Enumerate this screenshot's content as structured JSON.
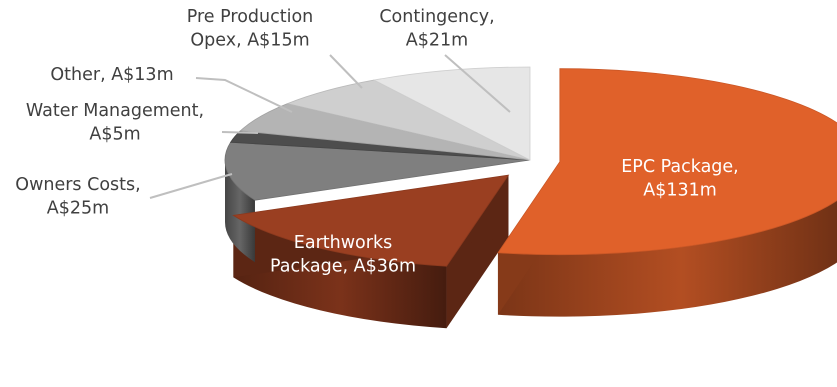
{
  "chart_data": {
    "type": "pie",
    "title": "",
    "slices": [
      {
        "label_lines": [
          "EPC Package,",
          "A$131m"
        ],
        "value": 131,
        "color": "#e0612a",
        "label_color": "#ffffff",
        "exploded": true
      },
      {
        "label_lines": [
          "Earthworks",
          "Package, A$36m"
        ],
        "value": 36,
        "color": "#9a3f21",
        "label_color": "#ffffff",
        "exploded": true
      },
      {
        "label_lines": [
          "Owners Costs,",
          "A$25m"
        ],
        "value": 25,
        "color": "#7f7f7f",
        "label_color": "#404040",
        "exploded": false
      },
      {
        "label_lines": [
          "Water Management,",
          "A$5m"
        ],
        "value": 5,
        "color": "#4d4d4d",
        "label_color": "#404040",
        "exploded": false
      },
      {
        "label_lines": [
          "Other, A$13m"
        ],
        "value": 13,
        "color": "#b4b4b4",
        "label_color": "#404040",
        "exploded": false
      },
      {
        "label_lines": [
          "Pre Production",
          "Opex, A$15m"
        ],
        "value": 15,
        "color": "#cfcfcf",
        "label_color": "#404040",
        "exploded": false
      },
      {
        "label_lines": [
          "Contingency,",
          "A$21m"
        ],
        "value": 21,
        "color": "#e6e6e6",
        "label_color": "#404040",
        "exploded": false
      }
    ],
    "legend": "none",
    "style": "3d-exploded"
  }
}
